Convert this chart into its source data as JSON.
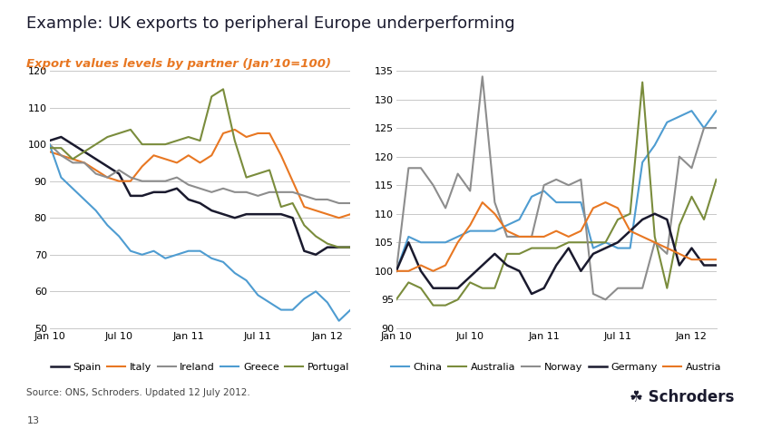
{
  "title": "Example: UK exports to peripheral Europe underperforming",
  "subtitle": "Export values levels by partner (Jan’10=100)",
  "title_color": "#1a1a2e",
  "subtitle_color": "#e87722",
  "source_text": "Source: ONS, Schroders. Updated 12 July 2012.",
  "page_number": "13",
  "left_chart": {
    "ylim": [
      50,
      120
    ],
    "yticks": [
      50,
      60,
      70,
      80,
      90,
      100,
      110,
      120
    ],
    "xtick_labels": [
      "Jan 10",
      "Jul 10",
      "Jan 11",
      "Jul 11",
      "Jan 12"
    ],
    "xtick_positions": [
      0,
      6,
      12,
      18,
      24
    ],
    "series": {
      "Spain": {
        "color": "#1a1a2e",
        "lw": 1.8,
        "y": [
          101,
          102,
          100,
          98,
          96,
          94,
          92,
          86,
          86,
          87,
          87,
          88,
          85,
          84,
          82,
          81,
          80,
          81,
          81,
          81,
          81,
          80,
          71,
          70,
          72,
          72,
          72
        ]
      },
      "Italy": {
        "color": "#e87722",
        "lw": 1.5,
        "y": [
          98,
          97,
          96,
          95,
          93,
          91,
          90,
          90,
          94,
          97,
          96,
          95,
          97,
          95,
          97,
          103,
          104,
          102,
          103,
          103,
          97,
          90,
          83,
          82,
          81,
          80,
          81
        ]
      },
      "Ireland": {
        "color": "#8d8d8d",
        "lw": 1.5,
        "y": [
          100,
          97,
          95,
          95,
          92,
          91,
          93,
          91,
          90,
          90,
          90,
          91,
          89,
          88,
          87,
          88,
          87,
          87,
          86,
          87,
          87,
          87,
          86,
          85,
          85,
          84,
          84
        ]
      },
      "Greece": {
        "color": "#4e9cd1",
        "lw": 1.5,
        "y": [
          100,
          91,
          88,
          85,
          82,
          78,
          75,
          71,
          70,
          71,
          69,
          70,
          71,
          71,
          69,
          68,
          65,
          63,
          59,
          57,
          55,
          55,
          58,
          60,
          57,
          52,
          55
        ]
      },
      "Portugal": {
        "color": "#7a8c3c",
        "lw": 1.5,
        "y": [
          99,
          99,
          96,
          98,
          100,
          102,
          103,
          104,
          100,
          100,
          100,
          101,
          102,
          101,
          113,
          115,
          101,
          91,
          92,
          93,
          83,
          84,
          78,
          75,
          73,
          72,
          72
        ]
      }
    },
    "legend": [
      "Spain",
      "Italy",
      "Ireland",
      "Greece",
      "Portugal"
    ]
  },
  "right_chart": {
    "ylim": [
      90,
      135
    ],
    "yticks": [
      90,
      95,
      100,
      105,
      110,
      115,
      120,
      125,
      130,
      135
    ],
    "xtick_labels": [
      "Jan 10",
      "Jul 10",
      "Jan 11",
      "Jul 11",
      "Jan 12"
    ],
    "xtick_positions": [
      0,
      6,
      12,
      18,
      24
    ],
    "series": {
      "China": {
        "color": "#4e9cd1",
        "lw": 1.5,
        "y": [
          100,
          106,
          105,
          105,
          105,
          106,
          107,
          107,
          107,
          108,
          109,
          113,
          114,
          112,
          112,
          112,
          104,
          105,
          104,
          104,
          119,
          122,
          126,
          127,
          128,
          125,
          128
        ]
      },
      "Australia": {
        "color": "#7a8c3c",
        "lw": 1.5,
        "y": [
          95,
          98,
          97,
          94,
          94,
          95,
          98,
          97,
          97,
          103,
          103,
          104,
          104,
          104,
          105,
          105,
          105,
          105,
          109,
          110,
          133,
          106,
          97,
          108,
          113,
          109,
          116
        ]
      },
      "Norway": {
        "color": "#8d8d8d",
        "lw": 1.5,
        "y": [
          100,
          118,
          118,
          115,
          111,
          117,
          114,
          134,
          112,
          106,
          106,
          106,
          115,
          116,
          115,
          116,
          96,
          95,
          97,
          97,
          97,
          105,
          103,
          120,
          118,
          125,
          125
        ]
      },
      "Germany": {
        "color": "#1a1a2e",
        "lw": 1.8,
        "y": [
          100,
          105,
          100,
          97,
          97,
          97,
          99,
          101,
          103,
          101,
          100,
          96,
          97,
          101,
          104,
          100,
          103,
          104,
          105,
          107,
          109,
          110,
          109,
          101,
          104,
          101,
          101
        ]
      },
      "Austria": {
        "color": "#e87722",
        "lw": 1.5,
        "y": [
          100,
          100,
          101,
          100,
          101,
          105,
          108,
          112,
          110,
          107,
          106,
          106,
          106,
          107,
          106,
          107,
          111,
          112,
          111,
          107,
          106,
          105,
          104,
          103,
          102,
          102,
          102
        ]
      }
    },
    "legend": [
      "China",
      "Australia",
      "Norway",
      "Germany",
      "Austria"
    ]
  },
  "background_color": "#ffffff",
  "grid_color": "#c8c8c8",
  "tick_label_fontsize": 8,
  "legend_fontsize": 8
}
